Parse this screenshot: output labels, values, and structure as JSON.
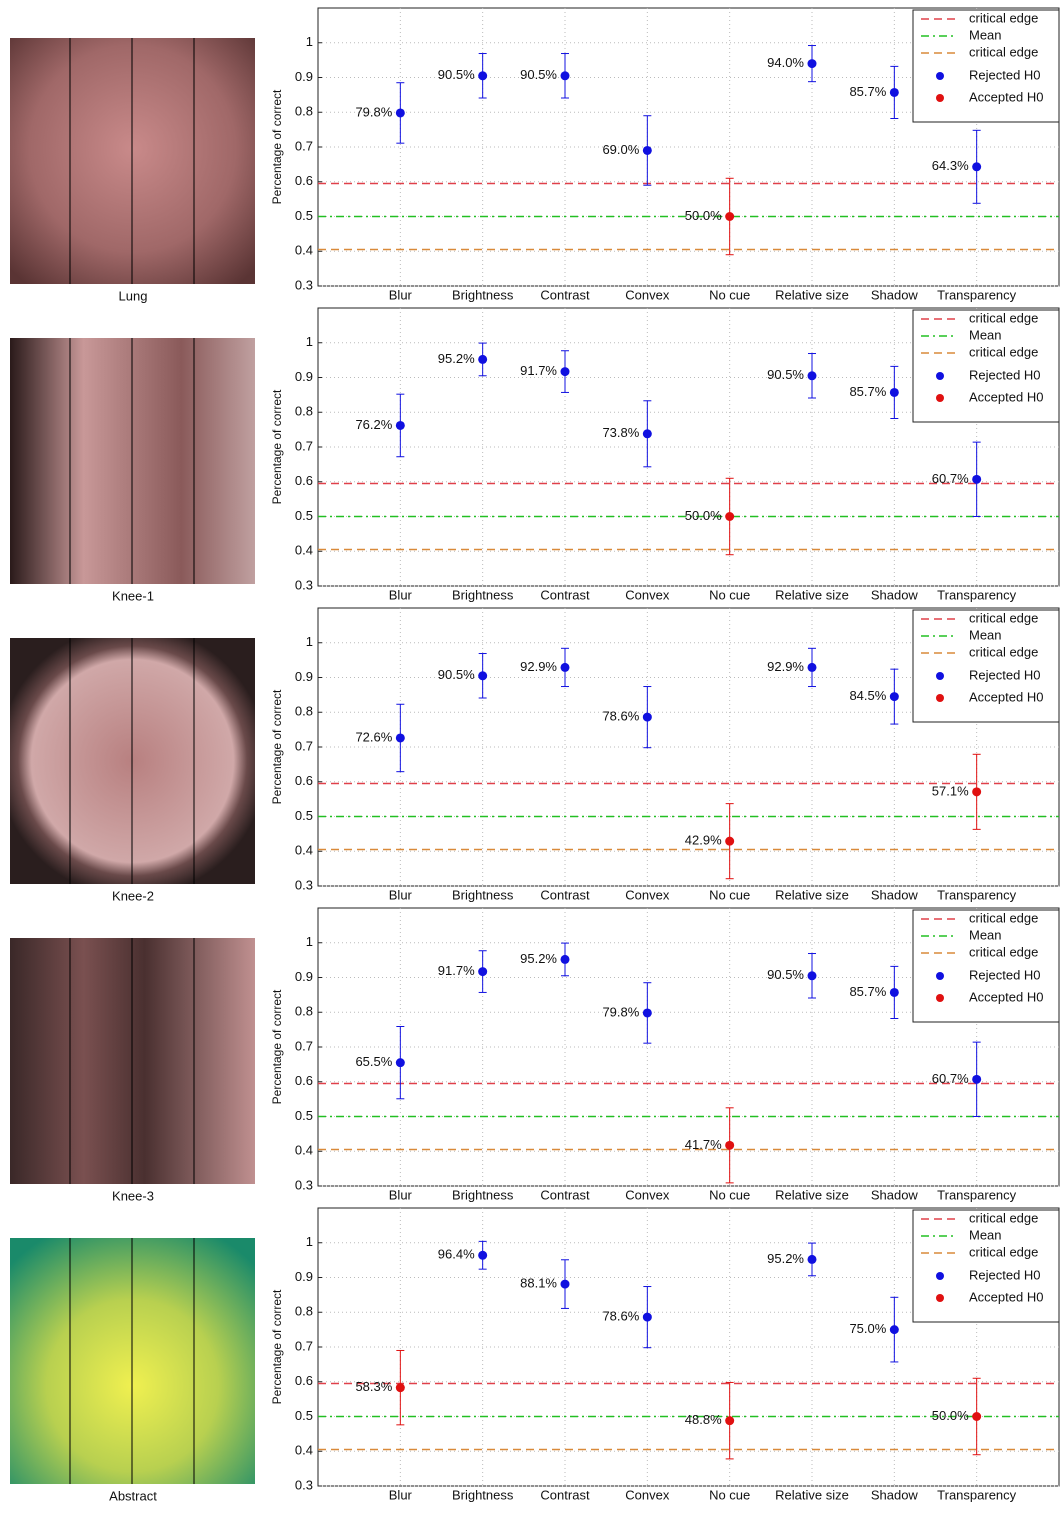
{
  "captions": [
    "Lung",
    "Knee-1",
    "Knee-2",
    "Knee-3",
    "Abstract"
  ],
  "chart_data": [
    {
      "type": "errorbar",
      "ylabel": "Percentage of correct",
      "categories": [
        "Blur",
        "Brightness",
        "Contrast",
        "Convex",
        "No cue",
        "Relative size",
        "Shadow",
        "Transparency"
      ],
      "ylim": [
        0.3,
        1.1
      ],
      "yticks": [
        0.3,
        0.4,
        0.5,
        0.6,
        0.7,
        0.8,
        0.9,
        1
      ],
      "grid": true,
      "legend": "upper right",
      "reference_lines": [
        {
          "name": "critical edge",
          "color": "#e0404a",
          "style": "dashed",
          "value": 0.595
        },
        {
          "name": "Mean",
          "color": "#22c022",
          "style": "dashdot",
          "value": 0.5
        },
        {
          "name": "critical edge",
          "color": "#d98a3a",
          "style": "dashed",
          "value": 0.405
        }
      ],
      "series": [
        {
          "name": "Rejected H0",
          "color": "#1010e0",
          "values": [
            0.798,
            0.905,
            0.905,
            0.69,
            null,
            0.94,
            0.857,
            0.643
          ],
          "errors": [
            0.087,
            0.064,
            0.064,
            0.1,
            null,
            0.052,
            0.075,
            0.105
          ],
          "value_labels": [
            "79.8%",
            "90.5%",
            "90.5%",
            "69.0%",
            null,
            "94.0%",
            "85.7%",
            "64.3%"
          ]
        },
        {
          "name": "Accepted H0",
          "color": "#e01010",
          "values": [
            null,
            null,
            null,
            null,
            0.5,
            null,
            null,
            null
          ],
          "errors": [
            null,
            null,
            null,
            null,
            0.11,
            null,
            null,
            null
          ],
          "value_labels": [
            null,
            null,
            null,
            null,
            "50.0%",
            null,
            null,
            null
          ]
        }
      ]
    },
    {
      "type": "errorbar",
      "ylabel": "Percentage of correct",
      "categories": [
        "Blur",
        "Brightness",
        "Contrast",
        "Convex",
        "No cue",
        "Relative size",
        "Shadow",
        "Transparency"
      ],
      "ylim": [
        0.3,
        1.1
      ],
      "yticks": [
        0.3,
        0.4,
        0.5,
        0.6,
        0.7,
        0.8,
        0.9,
        1
      ],
      "grid": true,
      "legend": "upper right",
      "reference_lines": [
        {
          "name": "critical edge",
          "color": "#e0404a",
          "style": "dashed",
          "value": 0.595
        },
        {
          "name": "Mean",
          "color": "#22c022",
          "style": "dashdot",
          "value": 0.5
        },
        {
          "name": "critical edge",
          "color": "#d98a3a",
          "style": "dashed",
          "value": 0.405
        }
      ],
      "series": [
        {
          "name": "Rejected H0",
          "color": "#1010e0",
          "values": [
            0.762,
            0.952,
            0.917,
            0.738,
            null,
            0.905,
            0.857,
            0.607
          ],
          "errors": [
            0.09,
            0.047,
            0.06,
            0.095,
            null,
            0.064,
            0.075,
            0.107
          ],
          "value_labels": [
            "76.2%",
            "95.2%",
            "91.7%",
            "73.8%",
            null,
            "90.5%",
            "85.7%",
            "60.7%"
          ]
        },
        {
          "name": "Accepted H0",
          "color": "#e01010",
          "values": [
            null,
            null,
            null,
            null,
            0.5,
            null,
            null,
            null
          ],
          "errors": [
            null,
            null,
            null,
            null,
            0.11,
            null,
            null,
            null
          ],
          "value_labels": [
            null,
            null,
            null,
            null,
            "50.0%",
            null,
            null,
            null
          ]
        }
      ]
    },
    {
      "type": "errorbar",
      "ylabel": "Percentage of correct",
      "categories": [
        "Blur",
        "Brightness",
        "Contrast",
        "Convex",
        "No cue",
        "Relative size",
        "Shadow",
        "Transparency"
      ],
      "ylim": [
        0.3,
        1.1
      ],
      "yticks": [
        0.3,
        0.4,
        0.5,
        0.6,
        0.7,
        0.8,
        0.9,
        1
      ],
      "grid": true,
      "legend": "upper right",
      "reference_lines": [
        {
          "name": "critical edge",
          "color": "#e0404a",
          "style": "dashed",
          "value": 0.595
        },
        {
          "name": "Mean",
          "color": "#22c022",
          "style": "dashdot",
          "value": 0.5
        },
        {
          "name": "critical edge",
          "color": "#d98a3a",
          "style": "dashed",
          "value": 0.405
        }
      ],
      "series": [
        {
          "name": "Rejected H0",
          "color": "#1010e0",
          "values": [
            0.726,
            0.905,
            0.929,
            0.786,
            null,
            0.929,
            0.845,
            null
          ],
          "errors": [
            0.097,
            0.064,
            0.055,
            0.088,
            null,
            0.055,
            0.079,
            null
          ],
          "value_labels": [
            "72.6%",
            "90.5%",
            "92.9%",
            "78.6%",
            null,
            "92.9%",
            "84.5%",
            null
          ]
        },
        {
          "name": "Accepted H0",
          "color": "#e01010",
          "values": [
            null,
            null,
            null,
            null,
            0.429,
            null,
            null,
            0.571
          ],
          "errors": [
            null,
            null,
            null,
            null,
            0.108,
            null,
            null,
            0.108
          ],
          "value_labels": [
            null,
            null,
            null,
            null,
            "42.9%",
            null,
            null,
            "57.1%"
          ]
        }
      ]
    },
    {
      "type": "errorbar",
      "ylabel": "Percentage of correct",
      "categories": [
        "Blur",
        "Brightness",
        "Contrast",
        "Convex",
        "No cue",
        "Relative size",
        "Shadow",
        "Transparency"
      ],
      "ylim": [
        0.3,
        1.1
      ],
      "yticks": [
        0.3,
        0.4,
        0.5,
        0.6,
        0.7,
        0.8,
        0.9,
        1
      ],
      "grid": true,
      "legend": "upper right",
      "reference_lines": [
        {
          "name": "critical edge",
          "color": "#e0404a",
          "style": "dashed",
          "value": 0.595
        },
        {
          "name": "Mean",
          "color": "#22c022",
          "style": "dashdot",
          "value": 0.5
        },
        {
          "name": "critical edge",
          "color": "#d98a3a",
          "style": "dashed",
          "value": 0.405
        }
      ],
      "series": [
        {
          "name": "Rejected H0",
          "color": "#1010e0",
          "values": [
            0.655,
            0.917,
            0.952,
            0.798,
            null,
            0.905,
            0.857,
            0.607
          ],
          "errors": [
            0.104,
            0.06,
            0.047,
            0.087,
            null,
            0.064,
            0.075,
            0.107
          ],
          "value_labels": [
            "65.5%",
            "91.7%",
            "95.2%",
            "79.8%",
            null,
            "90.5%",
            "85.7%",
            "60.7%"
          ]
        },
        {
          "name": "Accepted H0",
          "color": "#e01010",
          "values": [
            null,
            null,
            null,
            null,
            0.417,
            null,
            null,
            null
          ],
          "errors": [
            null,
            null,
            null,
            null,
            0.108,
            null,
            null,
            null
          ],
          "value_labels": [
            null,
            null,
            null,
            null,
            "41.7%",
            null,
            null,
            null
          ]
        }
      ]
    },
    {
      "type": "errorbar",
      "ylabel": "Percentage of correct",
      "categories": [
        "Blur",
        "Brightness",
        "Contrast",
        "Convex",
        "No cue",
        "Relative size",
        "Shadow",
        "Transparency"
      ],
      "ylim": [
        0.3,
        1.1
      ],
      "yticks": [
        0.3,
        0.4,
        0.5,
        0.6,
        0.7,
        0.8,
        0.9,
        1
      ],
      "grid": true,
      "legend": "upper right",
      "reference_lines": [
        {
          "name": "critical edge",
          "color": "#e0404a",
          "style": "dashed",
          "value": 0.595
        },
        {
          "name": "Mean",
          "color": "#22c022",
          "style": "dashdot",
          "value": 0.5
        },
        {
          "name": "critical edge",
          "color": "#d98a3a",
          "style": "dashed",
          "value": 0.405
        }
      ],
      "series": [
        {
          "name": "Rejected H0",
          "color": "#1010e0",
          "values": [
            null,
            0.964,
            0.881,
            0.786,
            null,
            0.952,
            0.75,
            null
          ],
          "errors": [
            null,
            0.04,
            0.07,
            0.088,
            null,
            0.047,
            0.093,
            null
          ],
          "value_labels": [
            null,
            "96.4%",
            "88.1%",
            "78.6%",
            null,
            "95.2%",
            "75.0%",
            null
          ]
        },
        {
          "name": "Accepted H0",
          "color": "#e01010",
          "values": [
            0.583,
            null,
            null,
            null,
            0.488,
            null,
            null,
            0.5
          ],
          "errors": [
            0.107,
            null,
            null,
            null,
            0.11,
            null,
            null,
            0.11
          ],
          "value_labels": [
            "58.3%",
            null,
            null,
            null,
            "48.8%",
            null,
            null,
            "50.0%"
          ]
        }
      ]
    }
  ]
}
